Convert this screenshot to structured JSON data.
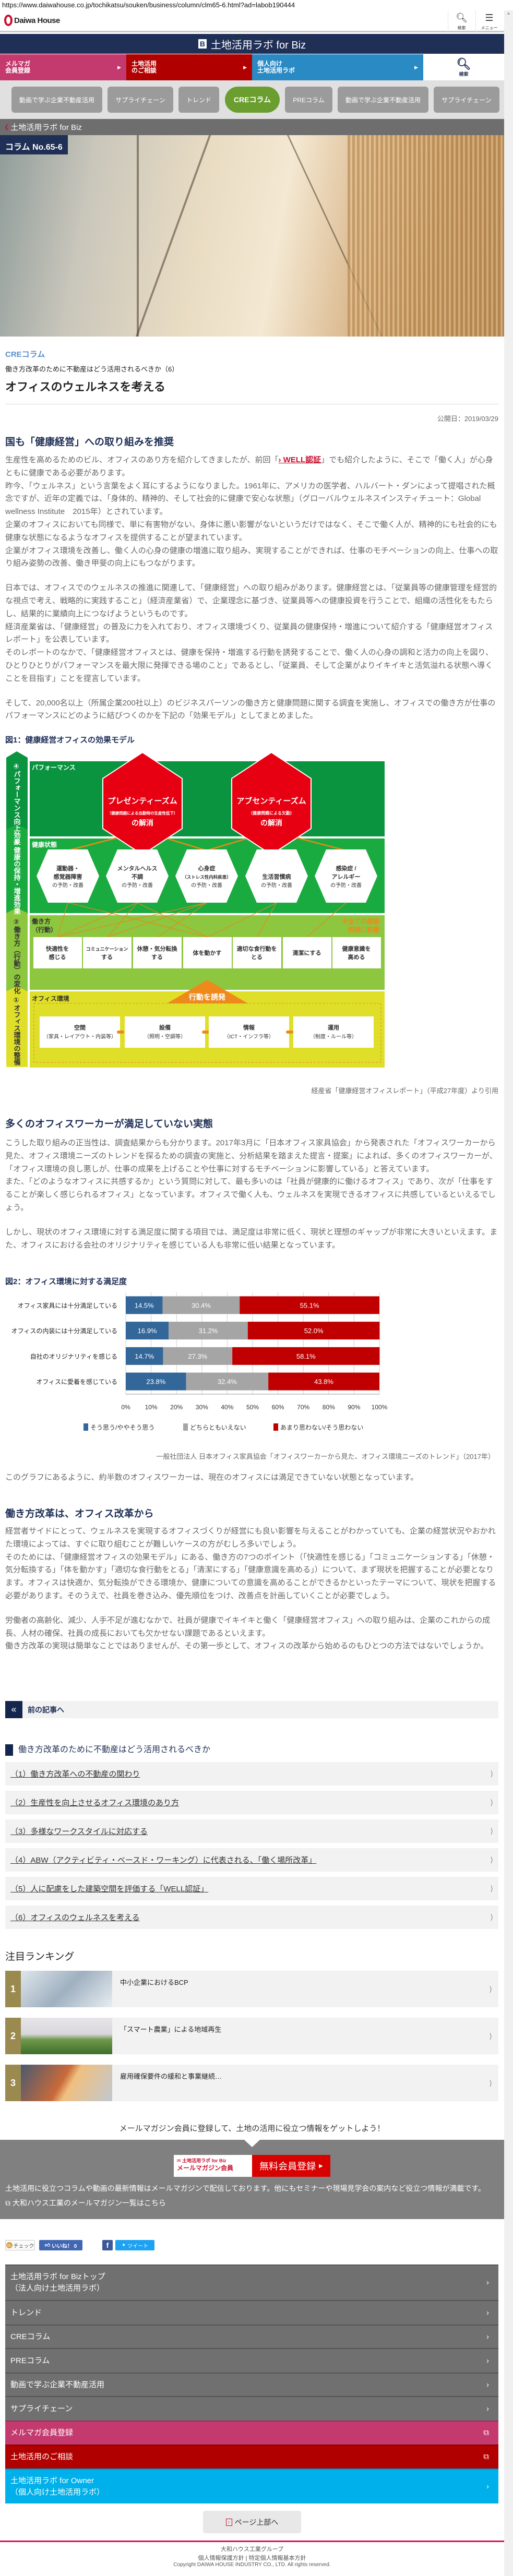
{
  "browser": {
    "url": "https://www.daiwahouse.co.jp/tochikatsu/souken/business/column/clm65-6.html?ad=labob190444"
  },
  "header": {
    "logo": "Daiwa House",
    "search_label": "検索",
    "menu_label": "メニュー"
  },
  "banner": {
    "icon": "B",
    "title": "土地活用ラボ for Biz"
  },
  "color_nav": [
    {
      "label1": "メルマガ",
      "label2": "会員登録",
      "color": "#c43a6e"
    },
    {
      "label1": "土地活用",
      "label2": "のご相談",
      "color": "#b00000"
    },
    {
      "label1": "個人向け",
      "label2": "土地活用ラボ",
      "color": "#2a8ac4"
    },
    {
      "label": "検索"
    }
  ],
  "tabs": [
    {
      "label": "動画で学ぶ企業不動産活用"
    },
    {
      "label": "サプライチェーン"
    },
    {
      "label": "トレンド"
    },
    {
      "label": "CREコラム",
      "active": true
    },
    {
      "label": "PREコラム"
    },
    {
      "label": "動画で学ぶ企業不動産活用"
    },
    {
      "label": "サプライチェーン"
    }
  ],
  "breadcrumb": {
    "label": "土地活用ラボ for Biz"
  },
  "hero": {
    "column_label": "コラム No.65-6"
  },
  "article": {
    "category": "CREコラム",
    "series": "働き方改革のために不動産はどう活用されるべきか（6）",
    "title": "オフィスのウェルネスを考える",
    "date": "公開日：2019/03/29",
    "s1_heading": "国も「健康経営」への取り組みを推奨",
    "p1_a": "生産性を高めるためのビル、オフィスのあり方を紹介してきましたが、前回「",
    "p1_link": "› WELL認証",
    "p1_b": "」でも紹介したように、そこで「働く人」が心身ともに健康である必要があります。",
    "p2": "昨今、「ウェルネス」という言葉をよく耳にするようになりました。1961年に、アメリカの医学者、ハルバート・ダンによって提唱された概念ですが、近年の定義では、「身体的、精神的、そして社会的に健康で安心な状態」（グローバルウェルネスインスティチュート：Global wellness Institute　2015年）とされています。",
    "p3": "企業のオフィスにおいても同様で、単に有害物がない、身体に悪い影響がないというだけではなく、そこで働く人が、精神的にも社会的にも健康な状態になるようなオフィスを提供することが望まれています。",
    "p4": "企業がオフィス環境を改善し、働く人の心身の健康の増進に取り組み、実現することができれば、仕事のモチベーションの向上、仕事への取り組み姿勢の改善、働き甲斐の向上にもつながります。",
    "p5": "日本では、オフィスでのウェルネスの推進に関連して、「健康経営」への取り組みがあります。健康経営とは、「従業員等の健康管理を経営的な視点で考え、戦略的に実践すること」（経済産業省）で、企業理念に基づき、従業員等への健康投資を行うことで、組織の活性化をもたらし、結果的に業績向上につなげようというものです。",
    "p6": "経済産業省は、「健康経営」の普及に力を入れており、オフィス環境づくり、従業員の健康保持・増進について紹介する「健康経営オフィスレポート」を公表しています。",
    "p7": "そのレポートのなかで、「健康経営オフィスとは、健康を保持・増進する行動を誘発することで、働く人の心身の調和と活力の向上を図り、ひとりひとりがパフォーマンスを最大限に発揮できる場のこと」であるとし、「従業員、そして企業がよりイキイキと活気溢れる状態へ導くことを目指す」ことを提言しています。",
    "p8": "そして、20,000名以上（所属企業200社以上）のビジネスパーソンの働き方と健康問題に関する調査を実施し、オフィスでの働き方が仕事のパフォーマンスにどのように結びつくのかを下記の「効果モデル」としてまとめました。",
    "fig1_title": "図1：健康経営オフィスの効果モデル",
    "fig1_source": "経産省「健康経営オフィスレポート」（平成27年度）より引用",
    "s2_heading": "多くのオフィスワーカーが満足していない実態",
    "p9": "こうした取り組みの正当性は、調査結果からも分かります。2017年3月に「日本オフィス家具協会」から発表された「オフィスワーカーから見た、オフィス環境ニーズのトレンドを探るための調査の実施と、分析結果を踏まえた提言・提案」によれば、多くのオフィスワーカーが、「オフィス環境の良し悪しが、仕事の成果を上げることや仕事に対するモチベーションに影響している」と答えています。",
    "p10": "また、「どのようなオフィスに共感するか」という質問に対して、最も多いのは「社員が健康的に働けるオフィス」であり、次が「仕事をすることが楽しく感じられるオフィス」となっています。オフィスで働く人も、ウェルネスを実現できるオフィスに共感しているといえるでしょう。",
    "p11": "しかし、現状のオフィス環境に対する満足度に関する項目では、満足度は非常に低く、現状と理想のギャップが非常に大きいといえます。また、オフィスにおける会社のオリジナリティを感じている人も非常に低い結果となっています。",
    "fig2_title": "図2：オフィス環境に対する満足度",
    "fig2_source": "一般社団法人 日本オフィス家具協会「オフィスワーカーから見た、オフィス環境ニーズのトレンド」（2017年）",
    "p12": "このグラフにあるように、約半数のオフィスワーカーは、現在のオフィスには満足できていない状態となっています。",
    "s3_heading": "働き方改革は、オフィス改革から",
    "p13": "経営者サイドにとって、ウェルネスを実現するオフィスづくりが経営にも良い影響を与えることがわかっていても、企業の経営状況やおかれた環境によっては、すぐに取り組むことが難しいケースの方がむしろ多いでしょう。",
    "p14": "そのためには、「健康経営オフィスの効果モデル」にある、働き方の7つのポイント（「快適性を感じる」「コミュニケーションする」「休憩・気分転換する」「体を動かす」「適切な食行動をとる」「清潔にする」「健康意識を高める」）について、まず現状を把握することが必要となります。オフィスは快適か、気分転換ができる環境か、健康についての意識を高めることができるかといったテーマについて、現状を把握する必要があります。そのうえで、社員を巻き込み、優先順位をつけ、改善点を計画していくことが必要でしょう。",
    "p15": "労働者の高齢化、減少、人手不足が進むなかで、社員が健康でイキイキと働く「健康経営オフィス」への取り組みは、企業のこれからの成長、人材の確保、社員の成長においても欠かせない課題であるといえます。",
    "p16": "働き方改革の実現は簡単なことではありませんが、その第一歩として、オフィスの改革から始めるのもひとつの方法ではないでしょうか。"
  },
  "diagram": {
    "stages": [
      "④パフォーマンス向上効果",
      "③健康の保持・増進効果",
      "②働き方（行動）の変化",
      "①オフィス環境の整備"
    ],
    "layers": [
      "パフォーマンス",
      "健康状態",
      "働き方",
      "（行動）",
      "オフィス環境"
    ],
    "red_hex": [
      {
        "title": "プレゼンティーズム",
        "sub": "（健康問題による出勤時の生産性低下）",
        "tail": "の解消"
      },
      {
        "title": "アブセンティーズム",
        "sub": "（健康問題による欠勤）",
        "tail": "の解消"
      }
    ],
    "health": [
      {
        "l1": "運動器・",
        "l2": "感覚器障害",
        "l3": "の予防・改善"
      },
      {
        "l1": "メンタルヘルス",
        "l2": "不調",
        "l3": "の予防・改善"
      },
      {
        "l1": "心身症",
        "l2": "（ストレス性内科疾患）",
        "l3": "の予防・改善"
      },
      {
        "l1": "",
        "l2": "生活習慣病",
        "l3": "の予防・改善"
      },
      {
        "l1": "感染症 /",
        "l2": "アレルギー",
        "l3": "の予防・改善"
      }
    ],
    "work": [
      {
        "l1": "快適性を",
        "l2": "感じる"
      },
      {
        "l1": "コミュニケーション",
        "l2": "する"
      },
      {
        "l1": "休憩・気分転換",
        "l2": "する"
      },
      {
        "l1": "体を動かす",
        "l2": ""
      },
      {
        "l1": "適切な食行動を",
        "l2": "とる"
      },
      {
        "l1": "清潔にする",
        "l2": ""
      },
      {
        "l1": "健康意識を",
        "l2": "高める"
      }
    ],
    "note1": "※全ての健康",
    "note2": "問題に影響",
    "trigger": "行動を誘発",
    "office": [
      {
        "l1": "空間",
        "l2": "（家具・レイアウト・内装等）"
      },
      {
        "l1": "設備",
        "l2": "（照明・空調等）"
      },
      {
        "l1": "情報",
        "l2": "（ICT・インフラ等）"
      },
      {
        "l1": "運用",
        "l2": "（制度・ルール等）"
      }
    ]
  },
  "chart_data": {
    "type": "bar",
    "stacked": true,
    "orientation": "horizontal",
    "title": "図2：オフィス環境に対する満足度",
    "categories": [
      "オフィス家具には十分満足している",
      "オフィスの内装には十分満足している",
      "自社のオリジナリティを感じる",
      "オフィスに愛着を感じている"
    ],
    "series": [
      {
        "name": "そう思う/ややそう思う",
        "values": [
          14.5,
          16.9,
          14.7,
          23.8
        ],
        "color": "#336699"
      },
      {
        "name": "どちらともいえない",
        "values": [
          30.4,
          31.2,
          27.3,
          32.4
        ],
        "color": "#a5a5a5"
      },
      {
        "name": "あまり思わない/そう思わない",
        "values": [
          55.1,
          52.0,
          58.1,
          43.8
        ],
        "color": "#c00000"
      }
    ],
    "xlim": [
      0,
      100
    ],
    "xticks": [
      "0%",
      "10%",
      "20%",
      "30%",
      "40%",
      "50%",
      "60%",
      "70%",
      "80%",
      "90%",
      "100%"
    ],
    "grid": true,
    "legend": "bottom"
  },
  "prev_article": {
    "label": "前の記事へ"
  },
  "series_list": {
    "heading": "働き方改革のために不動産はどう活用されるべきか",
    "items": [
      "（1）働き方改革への不動産の関わり",
      "（2）生産性を向上させるオフィス環境のあり方",
      "（3）多様なワークスタイルに対応する",
      "（4）ABW（アクティビティ・ベースド・ワーキング）に代表される、「働く場所改革」",
      "（5）人に配慮をした建築空間を評価する「WELL認証」",
      "（6）オフィスのウェルネスを考える"
    ]
  },
  "ranking": {
    "heading": "注目ランキング",
    "items": [
      {
        "rank": "1",
        "title": "中小企業におけるBCP"
      },
      {
        "rank": "2",
        "title": "「スマート農業」による地域再生"
      },
      {
        "rank": "3",
        "title": "雇用確保要件の緩和と事業継続…"
      }
    ]
  },
  "mail": {
    "lead": "メールマガジン会員に登録して、土地の活用に役立つ情報をゲットしよう！",
    "banner_small": "土地活用ラボ for Biz",
    "banner_big": "メールマガジン会員",
    "cta": "無料会員登録",
    "desc": "土地活用に役立つコラムや動画の最新情報はメールマガジンで配信しております。他にもセミナーや現場見学会の案内など役立つ情報が満載です。",
    "link": "大和ハウス工業のメールマガジン一覧はこちら"
  },
  "share": {
    "check": "チェック",
    "like": "いいね！ 0",
    "fb": "f",
    "tweet": "ツイート"
  },
  "footer_nav": [
    {
      "l1": "土地活用ラボ for Bizトップ",
      "l2": "（法人向け土地活用ラボ）"
    },
    {
      "l1": "トレンド"
    },
    {
      "l1": "CREコラム"
    },
    {
      "l1": "PREコラム"
    },
    {
      "l1": "動画で学ぶ企業不動産活用"
    },
    {
      "l1": "サプライチェーン"
    },
    {
      "l1": "メルマガ会員登録",
      "color": "#c43a6e"
    },
    {
      "l1": "土地活用のご相談",
      "color": "#b00000"
    },
    {
      "l1": "土地活用ラボ for Owner",
      "l2": "（個人向け土地活用ラボ）",
      "color": "#00b0ea"
    }
  ],
  "page_top": {
    "label": "ページ上部へ"
  },
  "footer": {
    "group": "大和ハウス工業グループ",
    "privacy": "個人情報保護方針",
    "sep": "|",
    "specific": "特定個人情報基本方針",
    "copyright": "Copyright DAIWA HOUSE INDUSTRY CO., LTD. All rights reserved."
  }
}
